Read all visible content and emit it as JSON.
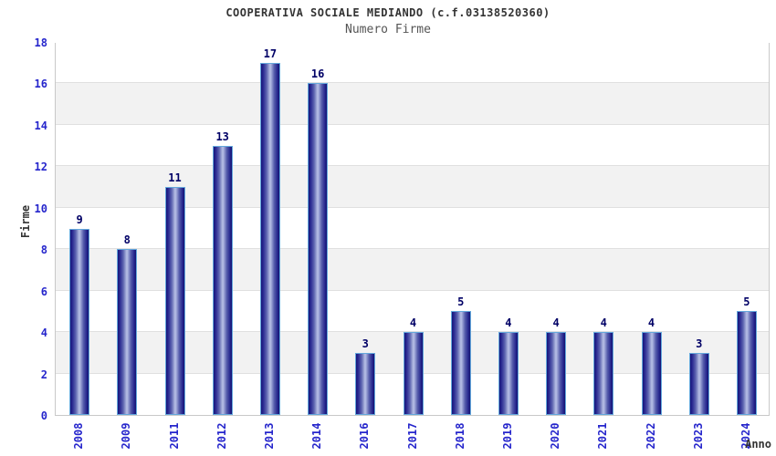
{
  "header": {
    "title": "COOPERATIVA SOCIALE MEDIANDO (c.f.03138520360)",
    "subtitle": "Numero Firme"
  },
  "chart_data": {
    "type": "bar",
    "title": "COOPERATIVA SOCIALE MEDIANDO (c.f.03138520360)",
    "subtitle": "Numero Firme",
    "xlabel": "Anno",
    "ylabel": "Firme",
    "categories": [
      "2008",
      "2009",
      "2011",
      "2012",
      "2013",
      "2014",
      "2016",
      "2017",
      "2018",
      "2019",
      "2020",
      "2021",
      "2022",
      "2023",
      "2024"
    ],
    "values": [
      9,
      8,
      11,
      13,
      17,
      16,
      3,
      4,
      5,
      4,
      4,
      4,
      4,
      3,
      5
    ],
    "ylim": [
      0,
      18
    ],
    "ytick_step": 2,
    "yticks": [
      0,
      2,
      4,
      6,
      8,
      10,
      12,
      14,
      16,
      18
    ],
    "grid": true,
    "legend": "none",
    "colors": {
      "bar_dark": "#15157a",
      "bar_light": "#b8c0e8",
      "bar_border": "#64a8dc",
      "tick_label": "#2626cc",
      "value_label": "#000066",
      "band_gray": "#f2f2f2",
      "gridline": "#e0e0e0",
      "plot_border": "#c9c9c9",
      "title_color": "#333333",
      "subtitle_color": "#555555"
    }
  }
}
